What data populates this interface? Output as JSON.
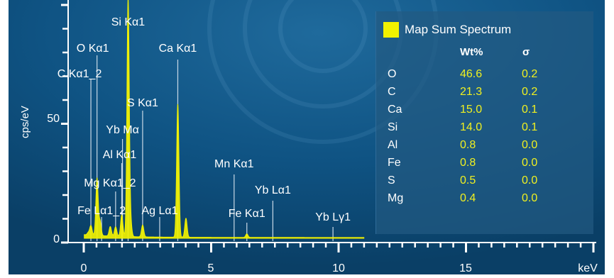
{
  "chart_data": {
    "type": "line",
    "title": "",
    "xlabel": "",
    "ylabel": "cps/eV",
    "x_unit": "keV",
    "xlim": [
      0,
      20
    ],
    "ylim": [
      0,
      100
    ],
    "x_ticks": [
      "0",
      "5",
      "10",
      "15"
    ],
    "y_ticks": [
      "0",
      "50"
    ],
    "series": [
      {
        "name": "Map Sum Spectrum",
        "color": "#f2f200",
        "peaks": [
          {
            "x": 0.18,
            "y": 1
          },
          {
            "x": 0.28,
            "y": 4
          },
          {
            "x": 0.52,
            "y": 24
          },
          {
            "x": 0.64,
            "y": 6
          },
          {
            "x": 1.04,
            "y": 4
          },
          {
            "x": 1.25,
            "y": 4
          },
          {
            "x": 1.49,
            "y": 9
          },
          {
            "x": 1.74,
            "y": 100
          },
          {
            "x": 1.84,
            "y": 6
          },
          {
            "x": 2.31,
            "y": 5
          },
          {
            "x": 3.69,
            "y": 56
          },
          {
            "x": 4.01,
            "y": 8
          },
          {
            "x": 6.4,
            "y": 1.5
          }
        ]
      }
    ],
    "peak_labels": [
      {
        "text": "Si Kα1",
        "x": 1.74
      },
      {
        "text": "Ca Kα1",
        "x": 3.69
      },
      {
        "text": "O Kα1",
        "x": 0.52
      },
      {
        "text": "C Kα1_2",
        "x": 0.28
      },
      {
        "text": "S Kα1",
        "x": 2.31
      },
      {
        "text": "Yb Mα",
        "x": 1.52
      },
      {
        "text": "Al Kα1",
        "x": 1.49
      },
      {
        "text": "Mg Kα1_2",
        "x": 1.25
      },
      {
        "text": "Fe Lα1_2",
        "x": 0.7
      },
      {
        "text": "Ag Lα1",
        "x": 2.98
      },
      {
        "text": "Mn Kα1",
        "x": 5.9
      },
      {
        "text": "Yb Lα1",
        "x": 7.42
      },
      {
        "text": "Fe Kα1",
        "x": 6.4
      },
      {
        "text": "Yb Lγ1",
        "x": 9.78
      }
    ],
    "legend_placement": "top-right",
    "grid": false,
    "colors": {
      "background": "#0d4872",
      "axis": "#ffffff",
      "label": "#ffffff",
      "highlight": "#f2f200"
    }
  },
  "legend": {
    "title": "Map Sum Spectrum",
    "col_wt": "Wt%",
    "col_sigma": "σ",
    "rows": [
      {
        "el": "O",
        "wt": "46.6",
        "sigma": "0.2"
      },
      {
        "el": "C",
        "wt": "21.3",
        "sigma": "0.2"
      },
      {
        "el": "Ca",
        "wt": "15.0",
        "sigma": "0.1"
      },
      {
        "el": "Si",
        "wt": "14.0",
        "sigma": "0.1"
      },
      {
        "el": "Al",
        "wt": "0.8",
        "sigma": "0.0"
      },
      {
        "el": "Fe",
        "wt": "0.8",
        "sigma": "0.0"
      },
      {
        "el": "S",
        "wt": "0.5",
        "sigma": "0.0"
      },
      {
        "el": "Mg",
        "wt": "0.4",
        "sigma": "0.0"
      }
    ]
  }
}
